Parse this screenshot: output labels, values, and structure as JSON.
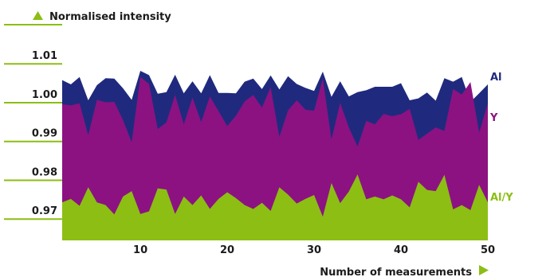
{
  "chart_data": {
    "type": "area",
    "title": "",
    "ylabel": "Normalised intensity",
    "xlabel": "Number of measurements",
    "xlim": [
      1,
      50
    ],
    "ylim": [
      0.9645,
      1.0125
    ],
    "xticks": [
      10,
      20,
      30,
      40,
      50
    ],
    "yticks": [
      0.97,
      0.98,
      0.99,
      1.0,
      1.01
    ],
    "ytick_labels": [
      "0.97",
      "0.98",
      "0.99",
      "1.00",
      "1.01"
    ],
    "grid": false,
    "x": [
      1,
      2,
      3,
      4,
      5,
      6,
      7,
      8,
      9,
      10,
      11,
      12,
      13,
      14,
      15,
      16,
      17,
      18,
      19,
      20,
      21,
      22,
      23,
      24,
      25,
      26,
      27,
      28,
      29,
      30,
      31,
      32,
      33,
      34,
      35,
      36,
      37,
      38,
      39,
      40,
      41,
      42,
      43,
      44,
      45,
      46,
      47,
      48,
      49,
      50
    ],
    "series": [
      {
        "name": "Al",
        "color": "#1f2a7e",
        "label_color": "#1f2a7e",
        "values": [
          1.0058,
          1.0047,
          1.0066,
          1.0006,
          1.0045,
          1.0063,
          1.0062,
          1.0037,
          1.0007,
          1.0082,
          1.0071,
          1.0023,
          1.0027,
          1.0072,
          1.0024,
          1.0055,
          1.0024,
          1.0071,
          1.0025,
          1.0025,
          1.0024,
          1.0054,
          1.0062,
          1.0035,
          1.007,
          1.0034,
          1.0068,
          1.0048,
          1.0038,
          1.003,
          1.008,
          1.0015,
          1.0055,
          1.0016,
          1.0027,
          1.0032,
          1.0041,
          1.0041,
          1.0041,
          1.005,
          1.0006,
          1.0011,
          1.0026,
          1.0005,
          1.0063,
          1.0054,
          1.0066,
          1.0002,
          1.0024,
          1.0047
        ]
      },
      {
        "name": "Y",
        "color": "#8c1281",
        "label_color": "#8c1281",
        "values": [
          0.9996,
          0.9993,
          0.9998,
          0.9916,
          1.0007,
          1.0001,
          1.0002,
          0.9955,
          0.9898,
          1.0066,
          1.0048,
          0.9932,
          0.9949,
          1.002,
          0.9944,
          1.0013,
          0.995,
          1.0016,
          0.9978,
          0.994,
          0.9966,
          1.0003,
          1.002,
          0.9987,
          1.004,
          0.9912,
          0.998,
          1.0006,
          0.9982,
          0.9979,
          1.0062,
          0.9905,
          0.9999,
          0.9936,
          0.9887,
          0.9953,
          0.9944,
          0.9971,
          0.9965,
          0.997,
          0.9984,
          0.9904,
          0.992,
          0.9936,
          0.9927,
          1.0035,
          1.0021,
          1.0053,
          0.9923,
          0.9998
        ]
      },
      {
        "name": "Al/Y",
        "color": "#8cbe14",
        "label_color": "#8cbe14",
        "values": [
          0.9743,
          0.9752,
          0.9734,
          0.9782,
          0.9743,
          0.9736,
          0.9712,
          0.9758,
          0.9772,
          0.9713,
          0.972,
          0.9779,
          0.9776,
          0.9713,
          0.9758,
          0.9736,
          0.9761,
          0.9726,
          0.9752,
          0.9769,
          0.9754,
          0.9736,
          0.9726,
          0.9742,
          0.9721,
          0.9782,
          0.9763,
          0.974,
          0.9752,
          0.9762,
          0.9706,
          0.9793,
          0.9741,
          0.9771,
          0.9815,
          0.9751,
          0.9758,
          0.9751,
          0.9761,
          0.9751,
          0.973,
          0.9796,
          0.9775,
          0.9772,
          0.9814,
          0.9725,
          0.9736,
          0.9723,
          0.9788,
          0.9743
        ]
      }
    ],
    "legend": "labels at right end of series"
  }
}
